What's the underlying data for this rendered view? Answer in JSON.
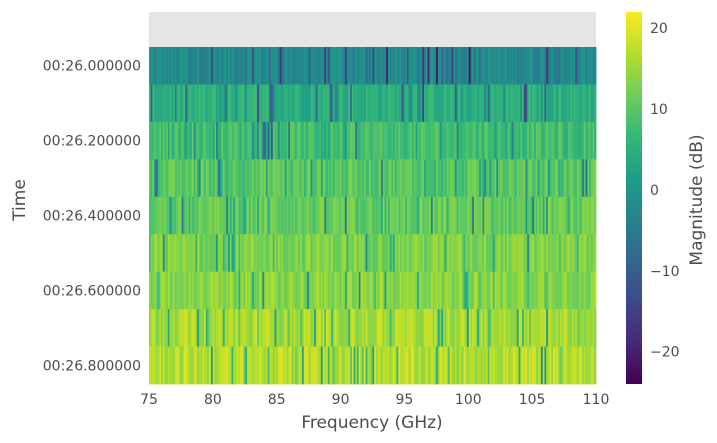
{
  "chart_data": {
    "type": "heatmap",
    "title": "",
    "xlabel": "Frequency (GHz)",
    "ylabel": "Time",
    "xlim": [
      75,
      110
    ],
    "x_ticks": [
      75,
      80,
      85,
      90,
      95,
      100,
      105,
      110
    ],
    "x_tick_labels": [
      "75",
      "80",
      "85",
      "90",
      "95",
      "100",
      "105",
      "110"
    ],
    "y_tick_labels": [
      "00:26.000000",
      "00:26.200000",
      "00:26.400000",
      "00:26.600000",
      "00:26.800000"
    ],
    "time_rows": [
      "00:26.000000",
      "00:26.100000",
      "00:26.200000",
      "00:26.300000",
      "00:26.400000",
      "00:26.500000",
      "00:26.600000",
      "00:26.700000",
      "00:26.800000"
    ],
    "row_mean_db": [
      -2,
      5,
      8,
      10,
      11,
      13,
      14,
      16,
      17
    ],
    "empty_band_color": "#e5e5e5",
    "colorbar": {
      "label": "Magnitude (dB)",
      "min": -24,
      "max": 22,
      "ticks": [
        20,
        10,
        0,
        -10,
        -20
      ],
      "tick_labels": [
        "20",
        "10",
        "0",
        "−10",
        "−20"
      ],
      "colormap": "viridis",
      "colors": [
        "#440154",
        "#482878",
        "#3e4989",
        "#31688e",
        "#26828e",
        "#1f9e89",
        "#35b779",
        "#6ece58",
        "#b5de2b",
        "#fde725"
      ]
    }
  }
}
